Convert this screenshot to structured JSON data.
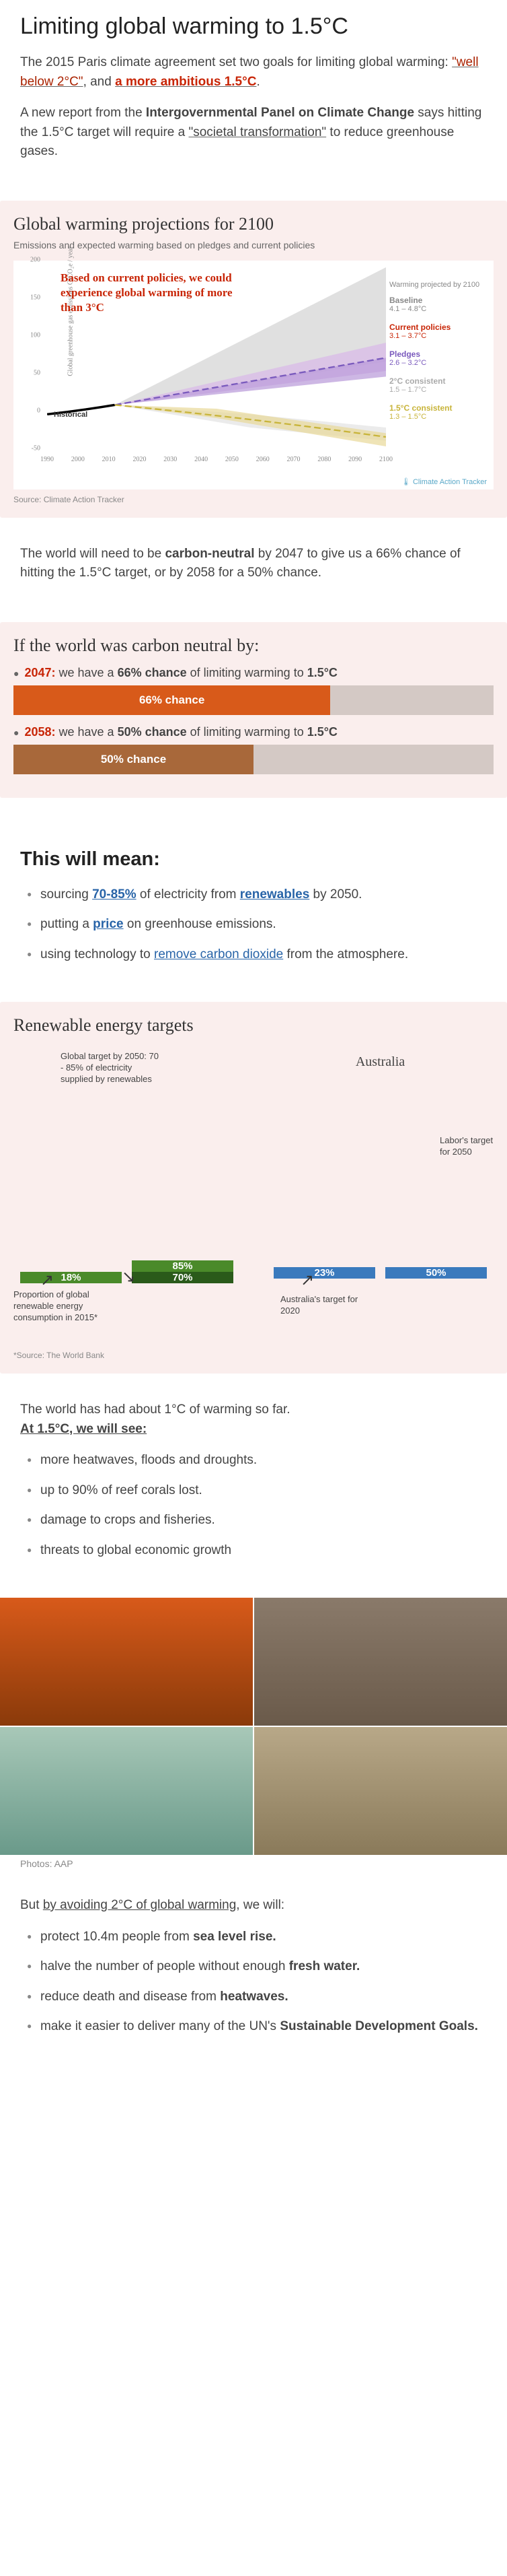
{
  "title": "Limiting global warming to 1.5°C",
  "intro1_a": "The 2015 Paris climate agreement set two goals for limiting global warming: ",
  "intro1_b": "\"well below 2°C\"",
  "intro1_c": ", and ",
  "intro1_d": "a more ambitious 1.5°C",
  "intro1_e": ".",
  "intro2_a": "A new report from the ",
  "intro2_b": "Intergovernmental Panel on Climate Change",
  "intro2_c": " says hitting the 1.5°C target will require a ",
  "intro2_d": "\"societal transformation\"",
  "intro2_e": " to reduce greenhouse gases.",
  "chart1": {
    "title": "Global warming projections for 2100",
    "subtitle": "Emissions and expected warming based on pledges and current policies",
    "y_label": "Global greenhouse gas emissions GtCO₂e / year",
    "y_ticks": [
      -50,
      0,
      50,
      100,
      150,
      200
    ],
    "x_ticks": [
      1990,
      2000,
      2010,
      2020,
      2030,
      2040,
      2050,
      2060,
      2070,
      2080,
      2090,
      2100
    ],
    "annotation": "Based on current policies, we could experience global warming of more than 3°C",
    "historical": "Historical",
    "leg_head": "Warming projected by 2100",
    "legend": [
      {
        "label": "Baseline",
        "val": "4.1 – 4.8°C",
        "color": "#888"
      },
      {
        "label": "Current policies",
        "val": "3.1 – 3.7°C",
        "color": "#c82506"
      },
      {
        "label": "Pledges",
        "val": "2.6 – 3.2°C",
        "color": "#7a5abd"
      },
      {
        "label": "2°C consistent",
        "val": "1.5 – 1.7°C",
        "color": "#aaa"
      },
      {
        "label": "1.5°C consistent",
        "val": "1.3 – 1.5°C",
        "color": "#c8b43a"
      }
    ],
    "source": "Source: Climate Action Tracker",
    "logo": "Climate Action Tracker"
  },
  "para_neutral_a": "The world will need to be ",
  "para_neutral_b": "carbon-neutral",
  "para_neutral_c": " by 2047 to give us a 66% chance of hitting the 1.5°C target, or by 2058 for a 50% chance.",
  "scenarios": {
    "title": "If the world was carbon neutral by:",
    "s1_year": "2047:",
    "s1_text_a": " we have a ",
    "s1_pct": "66% chance",
    "s1_text_b": " of limiting warming to ",
    "s1_target": "1.5°C",
    "s1_bar": "66% chance",
    "s1_width": 66,
    "s1_color": "#d85a1a",
    "s2_year": "2058:",
    "s2_text_a": " we have a ",
    "s2_pct": "50% chance",
    "s2_text_b": " of limiting warming to ",
    "s2_target": "1.5°C",
    "s2_bar": "50% chance",
    "s2_width": 50,
    "s2_color": "#a8683a"
  },
  "mean_title": "This will mean:",
  "mean1_a": "sourcing ",
  "mean1_b": "70-85%",
  "mean1_c": " of electricity from ",
  "mean1_d": "renewables",
  "mean1_e": " by 2050.",
  "mean2_a": "putting a ",
  "mean2_b": "price",
  "mean2_c": " on greenhouse emissions.",
  "mean3_a": "using technology to ",
  "mean3_b": "remove carbon dioxide",
  "mean3_c": " from the atmosphere.",
  "chart2": {
    "title": "Renewable energy targets",
    "global_label": "Global target by 2050:\n70 - 85% of electricity supplied by renewables",
    "aus_title": "Australia",
    "prop_label": "Proportion of global renewable energy consumption in 2015*",
    "aus_2020": "Australia's target for 2020",
    "labor": "Labor's target for 2050",
    "vals": {
      "g_current": "18%",
      "g_low": "70%",
      "g_high": "85%",
      "a_2020": "23%",
      "a_labor": "50%"
    },
    "source": "*Source: The World Bank"
  },
  "impacts_intro_a": "The world has had about 1°C of warming so far. ",
  "impacts_intro_b": "At 1.5°C, we will see:",
  "impacts": [
    "more heatwaves, floods and droughts.",
    "up to 90% of reef corals lost.",
    "damage to crops and fisheries.",
    "threats to global economic growth"
  ],
  "photos_caption": "Photos: AAP",
  "avoid_a": "But ",
  "avoid_b": "by avoiding 2°C of global warming",
  "avoid_c": ", we will:",
  "avoid1_a": "protect 10.4m people from ",
  "avoid1_b": "sea level rise.",
  "avoid2_a": "halve the number of people without enough ",
  "avoid2_b": "fresh water.",
  "avoid3_a": "reduce death and disease from ",
  "avoid3_b": "heatwaves.",
  "avoid4_a": "make it easier to deliver many of the UN's ",
  "avoid4_b": "Sustainable Development Goals."
}
